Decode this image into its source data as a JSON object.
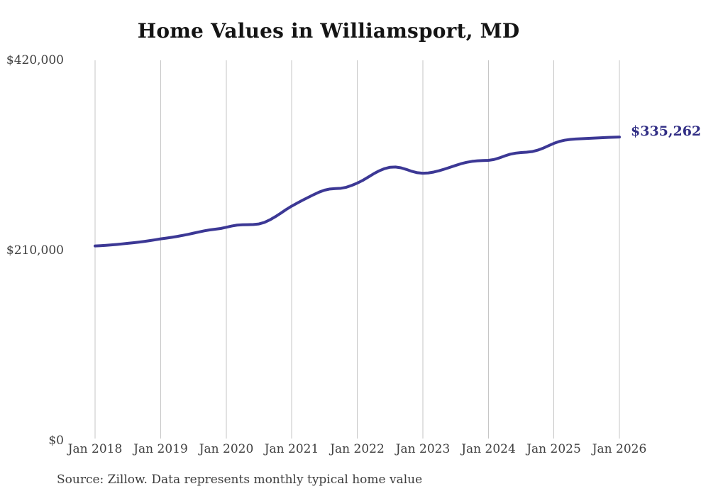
{
  "chart_data": {
    "type": "line",
    "title": "Home Values in Williamsport, MD",
    "series_name": "Monthly typical home value",
    "unit": "USD",
    "x_tick_labels": [
      "Jan 2018",
      "Jan 2019",
      "Jan 2020",
      "Jan 2021",
      "Jan 2022",
      "Jan 2023",
      "Jan 2024",
      "Jan 2025",
      "Jan 2026"
    ],
    "y_ticks": [
      {
        "label": "$420,000",
        "value": 420000
      },
      {
        "label": "$210,000",
        "value": 210000
      },
      {
        "label": "$0",
        "value": 0
      }
    ],
    "ylim": [
      0,
      420000
    ],
    "grid": "vertical-only",
    "legend": "none",
    "line_color": "#3c3895",
    "gridline_color": "#c6c6c6",
    "end_label": "$335,262",
    "end_value": 335262,
    "x_start": "Jan 2018",
    "x_end": "Jan 2026",
    "x_step": "1 month",
    "monthly_values": [
      215000,
      215300,
      215700,
      216200,
      216700,
      217300,
      217900,
      218500,
      219200,
      220000,
      220900,
      221800,
      222800,
      223600,
      224500,
      225500,
      226600,
      227800,
      229100,
      230400,
      231700,
      232700,
      233500,
      234300,
      235600,
      237000,
      238000,
      238400,
      238500,
      238700,
      239300,
      241000,
      243800,
      247300,
      251200,
      255300,
      259000,
      262300,
      265500,
      268600,
      271600,
      274400,
      276600,
      277900,
      278400,
      278700,
      279800,
      281900,
      284400,
      287400,
      291000,
      294700,
      297900,
      300400,
      301900,
      302200,
      301300,
      299500,
      297400,
      295900,
      295300,
      295600,
      296600,
      298100,
      299900,
      301900,
      303900,
      305800,
      307300,
      308400,
      309000,
      309300,
      309500,
      310400,
      312200,
      314400,
      316300,
      317500,
      318100,
      318500,
      319200,
      320700,
      322900,
      325600,
      328300,
      330400,
      331800,
      332600,
      333100,
      333400,
      333700,
      334000,
      334300,
      334600,
      334900,
      335100,
      335262
    ],
    "source": "Source: Zillow. Data represents monthly typical home value"
  }
}
